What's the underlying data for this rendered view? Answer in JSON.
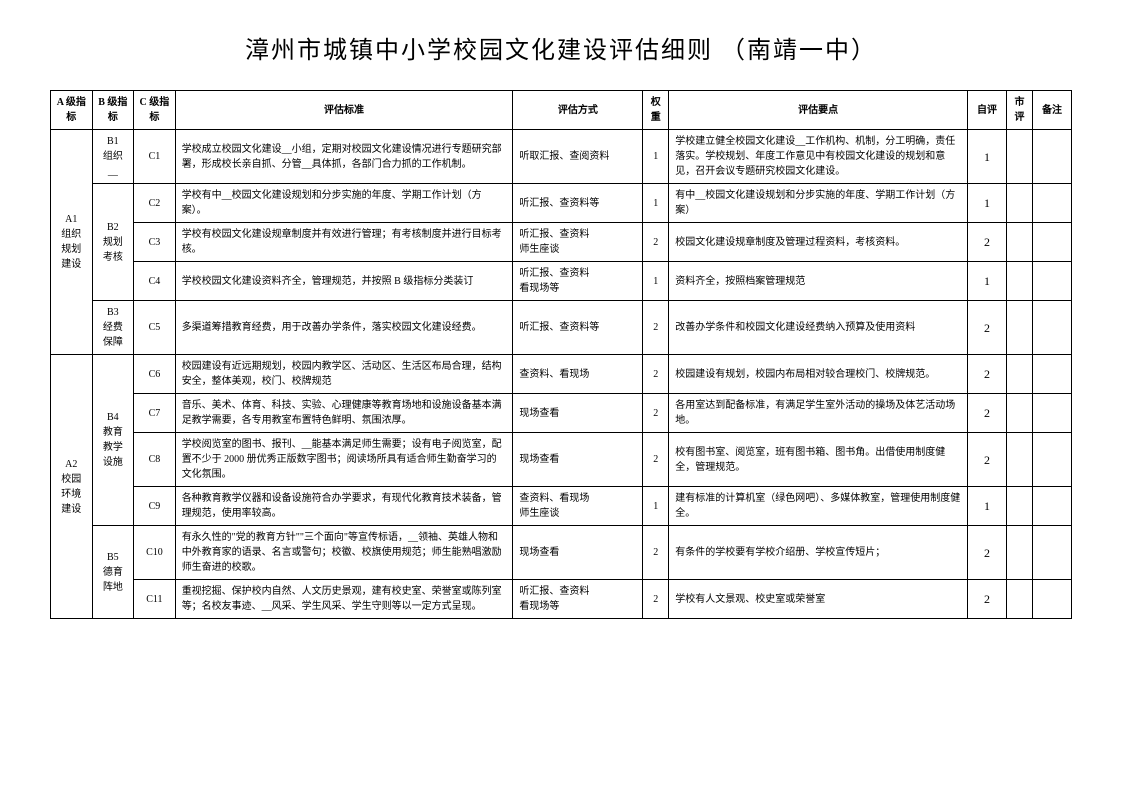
{
  "title": "漳州市城镇中小学校园文化建设评估细则 （南靖一中）",
  "headers": {
    "a": "A 级指标",
    "b": "B 级指标",
    "c": "C 级指标",
    "standard": "评估标准",
    "method": "评估方式",
    "weight": "权重",
    "points": "评估要点",
    "self": "自评",
    "city": "市评",
    "note": "备注"
  },
  "a1": {
    "label": "A1\n组织\n规划\n建设"
  },
  "b1": {
    "label": "B1\n组织\n__"
  },
  "b2": {
    "label": "B2\n规划\n考核"
  },
  "b3": {
    "label": "B3\n经费\n保障"
  },
  "a2": {
    "label": "A2\n校园\n环境\n建设"
  },
  "b4": {
    "label": "B4\n教育\n教学\n设施"
  },
  "b5": {
    "label": "B5\n德育\n阵地"
  },
  "rows": {
    "c1": {
      "idx": "C1",
      "standard": "学校成立校园文化建设__小组，定期对校园文化建设情况进行专题研究部署，形成校长亲自抓、分管__具体抓，各部门合力抓的工作机制。",
      "method": "听取汇报、查阅资料",
      "weight": "1",
      "points": "学校建立健全校园文化建设__工作机构、机制，分工明确，责任落实。学校规划、年度工作意见中有校园文化建设的规划和意见，召开会议专题研究校园文化建设。",
      "self": "1"
    },
    "c2": {
      "idx": "C2",
      "standard": "学校有中__校园文化建设规划和分步实施的年度、学期工作计划（方案）。",
      "method": "听汇报、查资料等",
      "weight": "1",
      "points": "有中__校园文化建设规划和分步实施的年度、学期工作计划（方案）",
      "self": "1"
    },
    "c3": {
      "idx": "C3",
      "standard": "学校有校园文化建设规章制度并有效进行管理；有考核制度并进行目标考核。",
      "method": "听汇报、查资料\n师生座谈",
      "weight": "2",
      "points": "校园文化建设规章制度及管理过程资料，考核资料。",
      "self": "2"
    },
    "c4": {
      "idx": "C4",
      "standard": "学校校园文化建设资料齐全，管理规范，并按照 B 级指标分类装订",
      "method": "听汇报、查资料\n看现场等",
      "weight": "1",
      "points": "资料齐全，按照档案管理规范",
      "self": "1"
    },
    "c5": {
      "idx": "C5",
      "standard": "多渠道筹措教育经费，用于改善办学条件，落实校园文化建设经费。",
      "method": "听汇报、查资料等",
      "weight": "2",
      "points": "改善办学条件和校园文化建设经费纳入预算及使用资料",
      "self": "2"
    },
    "c6": {
      "idx": "C6",
      "standard": "校园建设有近远期规划，校园内教学区、活动区、生活区布局合理，结构安全，整体美观，校门、校牌规范",
      "method": "查资料、看现场",
      "weight": "2",
      "points": "校园建设有规划，校园内布局相对较合理校门、校牌规范。",
      "self": "2"
    },
    "c7": {
      "idx": "C7",
      "standard": "音乐、美术、体育、科技、实验、心理健康等教育场地和设施设备基本满足教学需要，各专用教室布置特色鲜明、氛围浓厚。",
      "method": "现场查看",
      "weight": "2",
      "points": "各用室达到配备标准，有满足学生室外活动的操场及体艺活动场地。",
      "self": "2"
    },
    "c8": {
      "idx": "C8",
      "standard": "学校阅览室的图书、报刊、__能基本满足师生需要；设有电子阅览室，配置不少于 2000 册优秀正版数字图书；阅读场所具有适合师生勤奋学习的文化氛围。",
      "method": "现场查看",
      "weight": "2",
      "points": "校有图书室、阅览室，班有图书箱、图书角。出借使用制度健全，管理规范。",
      "self": "2"
    },
    "c9": {
      "idx": "C9",
      "standard": "各种教育教学仪器和设备设施符合办学要求，有现代化教育技术装备，管理规范，使用率较高。",
      "method": "查资料、看现场\n师生座谈",
      "weight": "1",
      "points": "建有标准的计算机室（绿色网吧）、多媒体教室，管理使用制度健全。",
      "self": "1"
    },
    "c10": {
      "idx": "C10",
      "standard": "有永久性的\"党的教育方针\"\"三个面向\"等宣传标语，__领袖、英雄人物和中外教育家的语录、名言或警句；校徽、校旗使用规范；师生能熟唱激励师生奋进的校歌。",
      "method": "现场查看",
      "weight": "2",
      "points": "有条件的学校要有学校介绍册、学校宣传短片；",
      "self": "2"
    },
    "c11": {
      "idx": "C11",
      "standard": "重视挖掘、保护校内自然、人文历史景观，建有校史室、荣誉室或陈列室等；名校友事迹、__风采、学生风采、学生守则等以一定方式呈现。",
      "method": "听汇报、查资料\n看现场等",
      "weight": "2",
      "points": "学校有人文景观、校史室或荣誉室",
      "self": "2"
    }
  },
  "style": {
    "border_color": "#000000",
    "background": "#ffffff",
    "title_fontsize": 24,
    "body_fontsize": 10
  }
}
